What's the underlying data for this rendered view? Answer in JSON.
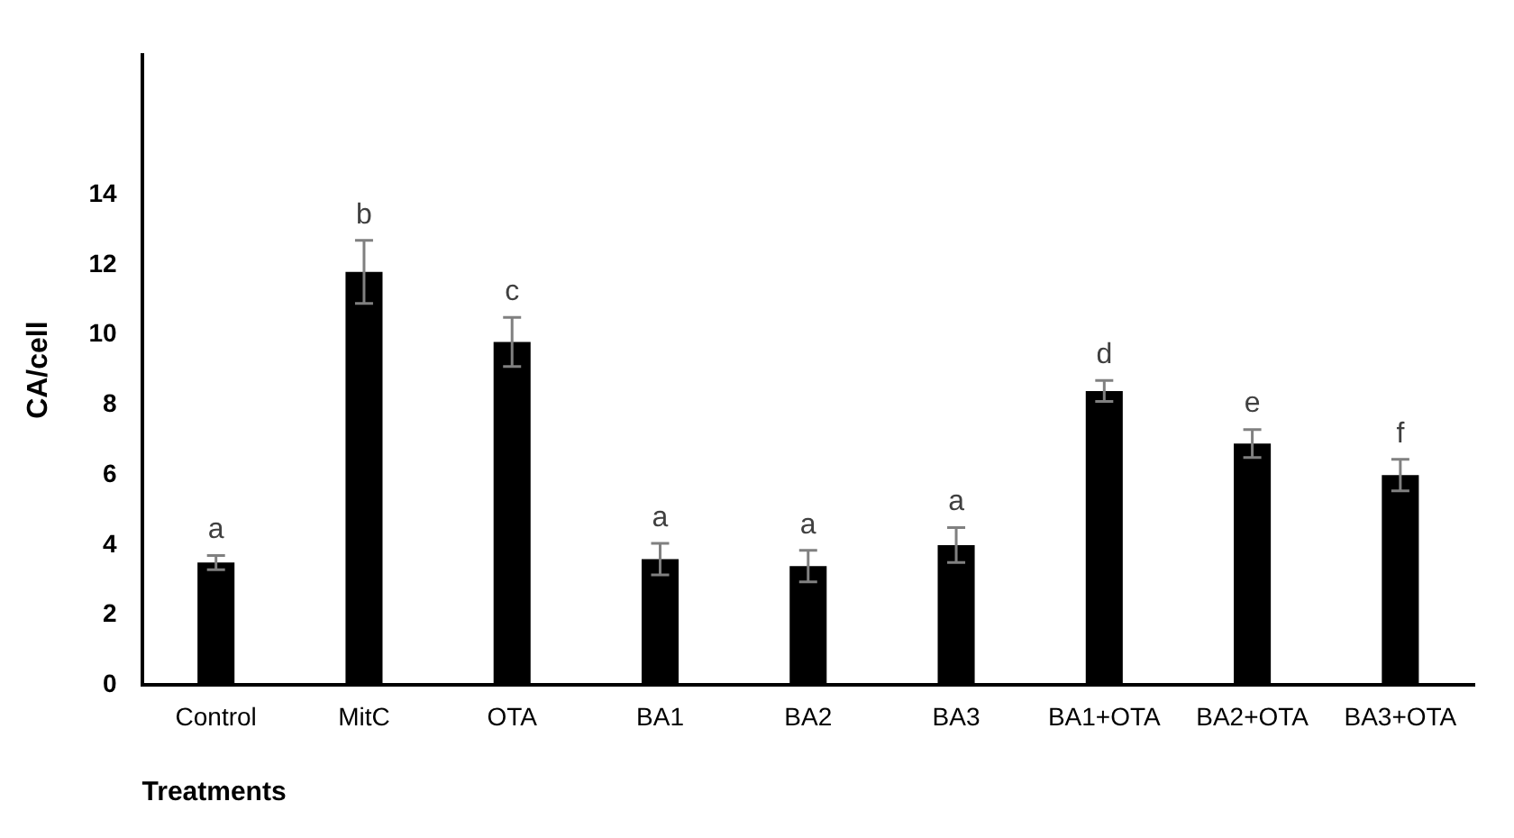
{
  "chart_data": {
    "type": "bar",
    "xlabel": "Treatments",
    "ylabel": "CA/cell",
    "categories": [
      "Control",
      "MitC",
      "OTA",
      "BA1",
      "BA2",
      "BA3",
      "BA1+OTA",
      "BA2+OTA",
      "BA3+OTA"
    ],
    "values": [
      3.5,
      11.8,
      9.8,
      3.6,
      3.4,
      4.0,
      8.4,
      6.9,
      6.0
    ],
    "errors": [
      0.2,
      0.9,
      0.7,
      0.45,
      0.45,
      0.5,
      0.3,
      0.4,
      0.45
    ],
    "color": "#000000",
    "ylim": [
      0,
      18
    ],
    "yticks": [
      0,
      2,
      4,
      6,
      8,
      10,
      12,
      14
    ],
    "grid": false,
    "legend": false,
    "annotations": [
      "a",
      "b",
      "c",
      "a",
      "a",
      "a",
      "d",
      "e",
      "f"
    ]
  }
}
